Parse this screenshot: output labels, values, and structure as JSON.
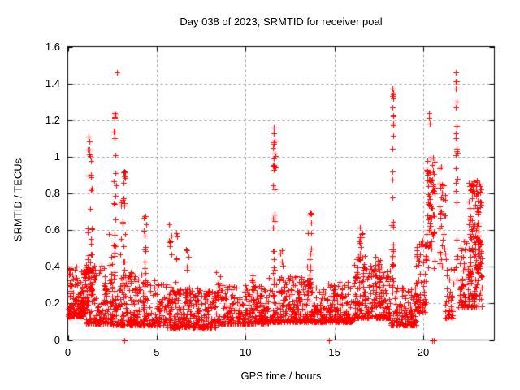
{
  "chart_data": {
    "type": "scatter",
    "title": "Day 038 of 2023, SRMTID for receiver poal",
    "xlabel": "GPS time / hours",
    "ylabel": "SRMTID / TECUs",
    "xlim": [
      0,
      24
    ],
    "ylim": [
      0,
      1.6
    ],
    "grid": true,
    "legend": "none",
    "marker": {
      "shape": "plus",
      "size": 7,
      "color": "#ff0000"
    },
    "grid_color": "#a0a0a0",
    "border_color": "#000000",
    "background": "#ffffff",
    "xticks": [
      {
        "v": 0,
        "label": "0"
      },
      {
        "v": 5,
        "label": "5"
      },
      {
        "v": 10,
        "label": "10"
      },
      {
        "v": 15,
        "label": "15"
      },
      {
        "v": 20,
        "label": "20"
      }
    ],
    "yticks": [
      {
        "v": 0,
        "label": "0"
      },
      {
        "v": 0.2,
        "label": "0.2"
      },
      {
        "v": 0.4,
        "label": "0.4"
      },
      {
        "v": 0.6,
        "label": "0.6"
      },
      {
        "v": 0.8,
        "label": "0.8"
      },
      {
        "v": 1,
        "label": "1"
      },
      {
        "v": 1.2,
        "label": "1.2"
      },
      {
        "v": 1.4,
        "label": "1.4"
      },
      {
        "v": 1.6,
        "label": "1.6"
      }
    ],
    "notable_peaks": [
      [
        1.2,
        1.12
      ],
      [
        2.6,
        1.24
      ],
      [
        2.75,
        1.46
      ],
      [
        3.1,
        1.0
      ],
      [
        4.35,
        0.7
      ],
      [
        5.9,
        0.64
      ],
      [
        11.6,
        1.16
      ],
      [
        12.0,
        0.54
      ],
      [
        13.55,
        0.7
      ],
      [
        16.4,
        0.62
      ],
      [
        18.3,
        1.37
      ],
      [
        20.3,
        1.24
      ],
      [
        20.4,
        1.0
      ],
      [
        21.1,
        0.95
      ],
      [
        21.85,
        1.46
      ],
      [
        23.0,
        0.87
      ]
    ],
    "zero_points": [
      3.18,
      14.69,
      20.52,
      20.6
    ],
    "point_cloud": {
      "seed": 38,
      "clusters": [
        {
          "x0": 0.03,
          "x1": 1.0,
          "n": 130,
          "y0": 0.13,
          "y1": 0.4,
          "p": 2.2
        },
        {
          "x0": 0.05,
          "x1": 0.18,
          "n": 12,
          "y0": 0.12,
          "y1": 0.45,
          "p": 1.6
        },
        {
          "x0": 0.85,
          "x1": 1.1,
          "n": 20,
          "y0": 0.15,
          "y1": 0.45,
          "p": 1.6
        },
        {
          "x0": 1.0,
          "x1": 2.5,
          "n": 160,
          "y0": 0.09,
          "y1": 0.42,
          "p": 2.6
        },
        {
          "x0": 1.1,
          "x1": 1.4,
          "n": 45,
          "y0": 0.25,
          "y1": 1.12,
          "p": 1.9
        },
        {
          "x0": 2.3,
          "x1": 2.5,
          "n": 8,
          "y0": 0.2,
          "y1": 0.64,
          "p": 1.6
        },
        {
          "x0": 2.56,
          "x1": 2.7,
          "n": 20,
          "y0": 0.45,
          "y1": 1.27,
          "p": 1.3
        },
        {
          "x0": 2.95,
          "x1": 3.25,
          "n": 28,
          "y0": 0.3,
          "y1": 1.0,
          "p": 1.6
        },
        {
          "x0": 2.5,
          "x1": 4.2,
          "n": 170,
          "y0": 0.08,
          "y1": 0.38,
          "p": 2.6
        },
        {
          "x0": 4.28,
          "x1": 4.42,
          "n": 14,
          "y0": 0.32,
          "y1": 0.7,
          "p": 1.3
        },
        {
          "x0": 4.2,
          "x1": 5.6,
          "n": 120,
          "y0": 0.08,
          "y1": 0.33,
          "p": 2.4
        },
        {
          "x0": 5.65,
          "x1": 6.2,
          "n": 32,
          "y0": 0.2,
          "y1": 0.64,
          "p": 1.7
        },
        {
          "x0": 6.6,
          "x1": 6.9,
          "n": 10,
          "y0": 0.25,
          "y1": 0.5,
          "p": 1.5
        },
        {
          "x0": 5.6,
          "x1": 8.3,
          "n": 270,
          "y0": 0.07,
          "y1": 0.28,
          "p": 2.2
        },
        {
          "x0": 8.35,
          "x1": 8.6,
          "n": 10,
          "y0": 0.22,
          "y1": 0.38,
          "p": 1.5
        },
        {
          "x0": 8.3,
          "x1": 11.3,
          "n": 290,
          "y0": 0.09,
          "y1": 0.3,
          "p": 2.4
        },
        {
          "x0": 10.3,
          "x1": 10.55,
          "n": 10,
          "y0": 0.22,
          "y1": 0.36,
          "p": 1.5
        },
        {
          "x0": 11.55,
          "x1": 11.68,
          "n": 26,
          "y0": 0.3,
          "y1": 1.16,
          "p": 1.2
        },
        {
          "x0": 11.3,
          "x1": 13.3,
          "n": 190,
          "y0": 0.1,
          "y1": 0.35,
          "p": 2.2
        },
        {
          "x0": 11.9,
          "x1": 12.1,
          "n": 10,
          "y0": 0.25,
          "y1": 0.54,
          "p": 1.5
        },
        {
          "x0": 13.45,
          "x1": 13.7,
          "n": 24,
          "y0": 0.28,
          "y1": 0.7,
          "p": 1.4
        },
        {
          "x0": 13.3,
          "x1": 16.1,
          "n": 260,
          "y0": 0.1,
          "y1": 0.32,
          "p": 2.4
        },
        {
          "x0": 16.25,
          "x1": 16.7,
          "n": 30,
          "y0": 0.2,
          "y1": 0.62,
          "p": 1.6
        },
        {
          "x0": 16.1,
          "x1": 18.15,
          "n": 200,
          "y0": 0.12,
          "y1": 0.42,
          "p": 2.0
        },
        {
          "x0": 17.25,
          "x1": 17.65,
          "n": 20,
          "y0": 0.2,
          "y1": 0.5,
          "p": 1.6
        },
        {
          "x0": 18.22,
          "x1": 18.34,
          "n": 26,
          "y0": 0.3,
          "y1": 1.37,
          "p": 1.15
        },
        {
          "x0": 18.15,
          "x1": 19.6,
          "n": 140,
          "y0": 0.08,
          "y1": 0.3,
          "p": 2.2
        },
        {
          "x0": 19.6,
          "x1": 20.15,
          "n": 65,
          "y0": 0.15,
          "y1": 0.55,
          "p": 1.8
        },
        {
          "x0": 20.18,
          "x1": 20.65,
          "n": 70,
          "y0": 0.35,
          "y1": 1.0,
          "p": 0.75
        },
        {
          "x0": 20.9,
          "x1": 21.25,
          "n": 30,
          "y0": 0.3,
          "y1": 0.95,
          "p": 0.9
        },
        {
          "x0": 21.2,
          "x1": 21.75,
          "n": 40,
          "y0": 0.12,
          "y1": 0.45,
          "p": 2.0
        },
        {
          "x0": 21.8,
          "x1": 21.92,
          "n": 14,
          "y0": 0.3,
          "y1": 1.05,
          "p": 1.2
        },
        {
          "x0": 21.95,
          "x1": 23.3,
          "n": 120,
          "y0": 0.18,
          "y1": 0.55,
          "p": 1.8
        },
        {
          "x0": 22.55,
          "x1": 23.28,
          "n": 90,
          "y0": 0.3,
          "y1": 0.87,
          "p": 0.85
        }
      ],
      "outliers": [
        [
          2.75,
          1.46
        ],
        [
          2.62,
          1.24
        ],
        [
          2.64,
          1.21
        ],
        [
          11.6,
          1.16
        ],
        [
          11.62,
          1.09
        ],
        [
          11.58,
          1.07
        ],
        [
          11.61,
          0.99
        ],
        [
          18.27,
          1.37
        ],
        [
          18.29,
          1.35
        ],
        [
          18.26,
          1.33
        ],
        [
          18.3,
          1.32
        ],
        [
          18.28,
          1.27
        ],
        [
          20.3,
          1.24
        ],
        [
          20.34,
          1.21
        ],
        [
          20.37,
          1.18
        ],
        [
          21.85,
          1.46
        ],
        [
          21.83,
          1.41
        ],
        [
          21.87,
          1.41
        ],
        [
          21.85,
          1.37
        ],
        [
          21.86,
          1.3
        ],
        [
          21.84,
          1.27
        ],
        [
          21.87,
          1.17
        ],
        [
          21.83,
          1.13
        ],
        [
          21.85,
          1.1
        ],
        [
          21.88,
          1.03
        ],
        [
          23.0,
          0.87
        ],
        [
          22.95,
          0.84
        ],
        [
          23.05,
          0.8
        ]
      ]
    }
  }
}
